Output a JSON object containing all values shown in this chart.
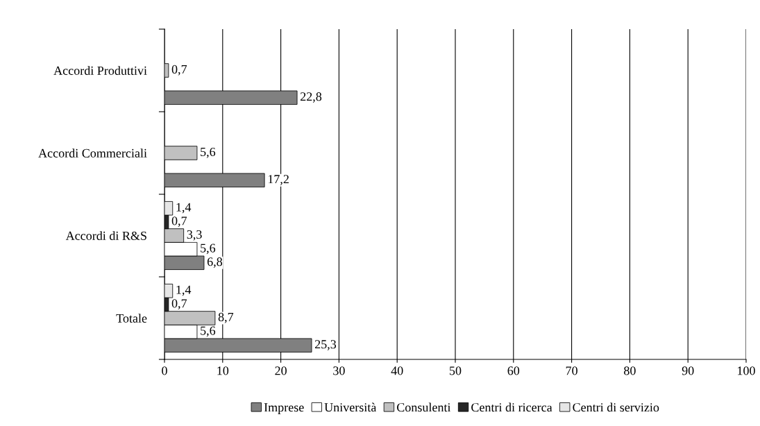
{
  "chart_data": {
    "type": "bar",
    "orientation": "horizontal",
    "categories": [
      "Accordi Produttivi",
      "Accordi Commerciali",
      "Accordi di R&S",
      "Totale"
    ],
    "series": [
      {
        "name": "Imprese",
        "color": "#808080",
        "values": [
          22.8,
          17.2,
          6.8,
          25.3
        ],
        "value_labels": [
          "22,8",
          "17,2",
          "6,8",
          "25,3"
        ]
      },
      {
        "name": "Università",
        "color": "#ffffff",
        "values": [
          null,
          null,
          5.6,
          5.6
        ],
        "value_labels": [
          null,
          null,
          "5,6",
          "5,6"
        ]
      },
      {
        "name": "Consulenti",
        "color": "#c0c0c0",
        "values": [
          0.7,
          5.6,
          3.3,
          8.7
        ],
        "value_labels": [
          "0,7",
          "5,6",
          "3,3",
          "8,7"
        ]
      },
      {
        "name": "Centri di ricerca",
        "color": "#262626",
        "values": [
          null,
          null,
          0.7,
          0.7
        ],
        "value_labels": [
          null,
          null,
          "0,7",
          "0,7"
        ]
      },
      {
        "name": "Centri di servizio",
        "color": "#e6e6e6",
        "values": [
          null,
          null,
          1.4,
          1.4
        ],
        "value_labels": [
          null,
          null,
          "1,4",
          "1,4"
        ]
      }
    ],
    "xlim": [
      0,
      100
    ],
    "xticks": [
      0,
      10,
      20,
      30,
      40,
      50,
      60,
      70,
      80,
      90,
      100
    ],
    "grid": "x",
    "legend": "bottom"
  }
}
